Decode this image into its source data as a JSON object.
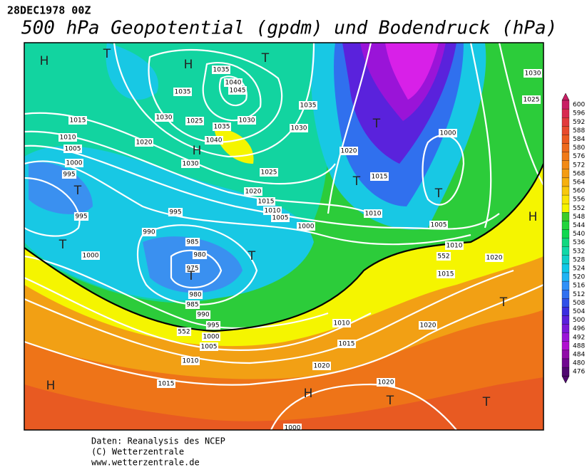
{
  "header": {
    "date": "28DEC1978 00Z",
    "title": "500 hPa Geopotential (gpdm) und Bodendruck (hPa)"
  },
  "colorbar": {
    "labels": [
      600,
      596,
      592,
      588,
      584,
      580,
      576,
      572,
      568,
      564,
      560,
      556,
      552,
      548,
      544,
      540,
      536,
      532,
      528,
      524,
      520,
      516,
      512,
      508,
      504,
      500,
      496,
      492,
      488,
      484,
      480,
      476
    ],
    "colors": [
      "#c81e64",
      "#d82a50",
      "#e23a3c",
      "#e84a2c",
      "#ec5a20",
      "#ee6a1c",
      "#f07a18",
      "#f28a16",
      "#f49c14",
      "#f6b010",
      "#f8c80c",
      "#fae406",
      "#f5f500",
      "#3ccc28",
      "#22d43c",
      "#10d850",
      "#10d880",
      "#10d8a8",
      "#10d0c8",
      "#10c8e8",
      "#20b4f4",
      "#3090f8",
      "#3070f0",
      "#3050e8",
      "#3a2ee0",
      "#5a20dc",
      "#7a18d8",
      "#9a14d8",
      "#b010d0",
      "#900ca8",
      "#700890",
      "#500870"
    ]
  },
  "map": {
    "isobar_labels": [
      "1035",
      "1040",
      "1045",
      "1035",
      "1030",
      "1025",
      "1035",
      "1030",
      "1040",
      "1030",
      "1025",
      "1035",
      "1030",
      "1015",
      "1010",
      "1005",
      "1000",
      "995",
      "1020",
      "1020",
      "1015",
      "1010",
      "1005",
      "995",
      "990",
      "995",
      "1000",
      "985",
      "980",
      "975",
      "980",
      "985",
      "990",
      "995",
      "1000",
      "1005",
      "1010",
      "1015",
      "1020",
      "1020",
      "1015",
      "1010",
      "1020",
      "1015",
      "1010",
      "1005",
      "1000",
      "1010",
      "1015",
      "1020",
      "1000",
      "1030",
      "1025",
      "1020",
      "1000",
      "552",
      "552"
    ],
    "pressure_centers": [
      "H",
      "T",
      "H",
      "T",
      "T",
      "T",
      "T",
      "T",
      "T",
      "T",
      "T",
      "H",
      "H",
      "T",
      "H",
      "H",
      "T",
      "T"
    ]
  },
  "footer": {
    "lines": [
      "Daten: Reanalysis des NCEP",
      "(C) Wetterzentrale",
      "www.wetterzentrale.de"
    ]
  }
}
